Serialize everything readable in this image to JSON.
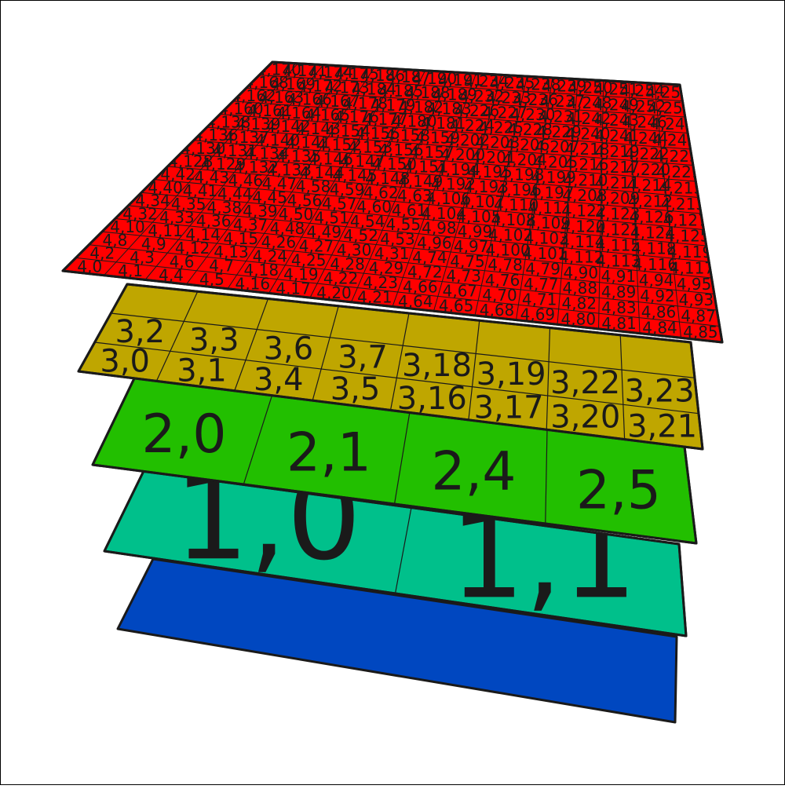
{
  "diagram": {
    "layers": [
      {
        "level": 0,
        "color": "#0047c0",
        "label_rows": []
      },
      {
        "level": 1,
        "color": "#00c08b",
        "label_rows": [
          [
            "1,0",
            "1,1"
          ]
        ]
      },
      {
        "level": 2,
        "color": "#22bf00",
        "label_rows": [
          [
            "2,0",
            "2,1",
            "2,4",
            "2,5"
          ]
        ]
      },
      {
        "level": 3,
        "color": "#bfa600",
        "label_rows": [
          [
            "3,0",
            "3,1",
            "3,4",
            "3,5",
            "3,16",
            "3,17",
            "3,20",
            "3,21"
          ],
          [
            "3,2",
            "3,3",
            "3,6",
            "3,7",
            "3,18",
            "3,19",
            "3,22",
            "3,23"
          ]
        ]
      },
      {
        "level": 4,
        "color": "#ff0000",
        "label_rows": [
          [
            "4,0",
            "4,1",
            "4,4",
            "4,5",
            "4,16",
            "4,17",
            "4,20",
            "4,21",
            "4,64",
            "4,65",
            "4,68",
            "4,69",
            "4,80",
            "4,81",
            "4,84",
            "4,85"
          ],
          [
            "4,2",
            "4,3",
            "4,6",
            "4,7",
            "4,18",
            "4,19",
            "4,22",
            "4,23",
            "4,66",
            "4,67",
            "4,70",
            "4,71",
            "4,82",
            "4,83",
            "4,86",
            "4,87"
          ],
          [
            "4,8",
            "4,9",
            "4,12",
            "4,13",
            "4,24",
            "4,25",
            "4,28",
            "4,29",
            "4,72",
            "4,73",
            "4,76",
            "4,77",
            "4,88",
            "4,89",
            "4,92",
            "4,93"
          ],
          [
            "4,10",
            "4,11",
            "4,14",
            "4,15",
            "4,26",
            "4,27",
            "4,30",
            "4,31",
            "4,74",
            "4,75",
            "4,78",
            "4,79",
            "4,90",
            "4,91",
            "4,94",
            "4,95"
          ],
          [
            "4,32",
            "4,33",
            "4,36",
            "4,37",
            "4,48",
            "4,49",
            "4,52",
            "4,53",
            "4,96",
            "4,97",
            "4,100",
            "4,101",
            "4,112",
            "4,113",
            "4,116",
            "4,117"
          ],
          [
            "4,34",
            "4,35",
            "4,38",
            "4,39",
            "4,50",
            "4,51",
            "4,54",
            "4,55",
            "4,98",
            "4,99",
            "4,102",
            "4,103",
            "4,114",
            "4,115",
            "4,118",
            "4,119"
          ],
          [
            "4,40",
            "4,41",
            "4,44",
            "4,45",
            "4,56",
            "4,57",
            "4,60",
            "4,61",
            "4,104",
            "4,105",
            "4,108",
            "4,109",
            "4,120",
            "4,121",
            "4,124",
            "4,125"
          ],
          [
            "4,42",
            "4,43",
            "4,46",
            "4,47",
            "4,58",
            "4,59",
            "4,62",
            "4,63",
            "4,106",
            "4,107",
            "4,110",
            "4,111",
            "4,122",
            "4,123",
            "4,126",
            "4,127"
          ],
          [
            "4,128",
            "4,129",
            "4,132",
            "4,133",
            "4,144",
            "4,145",
            "4,148",
            "4,149",
            "4,192",
            "4,193",
            "4,196",
            "4,197",
            "4,208",
            "4,209",
            "4,212",
            "4,213"
          ],
          [
            "4,130",
            "4,131",
            "4,134",
            "4,135",
            "4,146",
            "4,147",
            "4,150",
            "4,151",
            "4,194",
            "4,195",
            "4,198",
            "4,199",
            "4,210",
            "4,211",
            "4,214",
            "4,215"
          ],
          [
            "4,136",
            "4,137",
            "4,140",
            "4,141",
            "4,152",
            "4,153",
            "4,156",
            "4,157",
            "4,200",
            "4,201",
            "4,204",
            "4,205",
            "4,216",
            "4,217",
            "4,220",
            "4,221"
          ],
          [
            "4,138",
            "4,139",
            "4,142",
            "4,143",
            "4,154",
            "4,155",
            "4,158",
            "4,159",
            "4,202",
            "4,203",
            "4,206",
            "4,207",
            "4,218",
            "4,219",
            "4,222",
            "4,223"
          ],
          [
            "4,160",
            "4,161",
            "4,164",
            "4,165",
            "4,176",
            "4,177",
            "4,180",
            "4,181",
            "4,224",
            "4,225",
            "4,228",
            "4,229",
            "4,240",
            "4,241",
            "4,244",
            "4,245"
          ],
          [
            "4,162",
            "4,163",
            "4,166",
            "4,167",
            "4,178",
            "4,179",
            "4,182",
            "4,183",
            "4,226",
            "4,227",
            "4,230",
            "4,231",
            "4,242",
            "4,243",
            "4,246",
            "4,247"
          ],
          [
            "4,168",
            "4,169",
            "4,172",
            "4,173",
            "4,184",
            "4,185",
            "4,188",
            "4,189",
            "4,232",
            "4,233",
            "4,236",
            "4,237",
            "4,248",
            "4,249",
            "4,252",
            "4,253"
          ],
          [
            "4,170",
            "4,171",
            "4,174",
            "4,175",
            "4,186",
            "4,187",
            "4,190",
            "4,191",
            "4,234",
            "4,235",
            "4,238",
            "4,239",
            "4,250",
            "4,251",
            "4,254",
            "4,255"
          ]
        ]
      }
    ]
  }
}
